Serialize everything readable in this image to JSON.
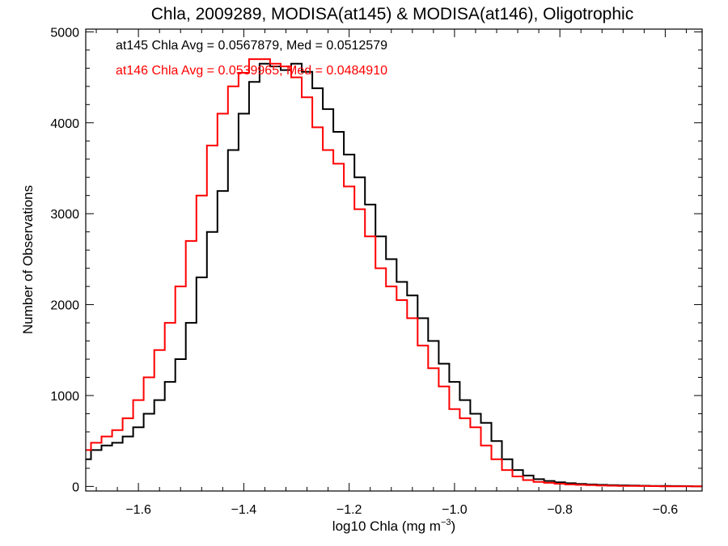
{
  "chart_data": {
    "type": "line",
    "step": true,
    "title": "Chla, 2009289, MODISA(at145) & MODISA(at146), Oligotrophic",
    "xlabel": "log10 Chla (mg m",
    "xlabel_sup": "−3",
    "xlabel_close": ")",
    "ylabel": "Number of Observations",
    "xlim": [
      -1.7,
      -0.53
    ],
    "ylim": [
      -50,
      5030
    ],
    "xticks": [
      -1.6,
      -1.4,
      -1.2,
      -1.0,
      -0.8,
      -0.6
    ],
    "xtick_labels": [
      "−1.6",
      "−1.4",
      "−1.2",
      "−1.0",
      "−0.8",
      "−0.6"
    ],
    "yticks": [
      0,
      1000,
      2000,
      3000,
      4000,
      5000
    ],
    "ytick_labels": [
      "0",
      "1000",
      "2000",
      "3000",
      "4000",
      "5000"
    ],
    "grid": false,
    "annotations": [
      {
        "text": "at145 Chla Avg = 0.0567879, Med = 0.0512579",
        "color": "#000000"
      },
      {
        "text": "at146 Chla Avg = 0.0539965, Med = 0.0484910",
        "color": "#ff0000"
      }
    ],
    "series": [
      {
        "color": "#000000",
        "x": [
          -1.7,
          -1.68,
          -1.66,
          -1.64,
          -1.62,
          -1.6,
          -1.58,
          -1.56,
          -1.54,
          -1.52,
          -1.5,
          -1.48,
          -1.46,
          -1.44,
          -1.42,
          -1.4,
          -1.38,
          -1.36,
          -1.34,
          -1.32,
          -1.3,
          -1.28,
          -1.26,
          -1.24,
          -1.22,
          -1.2,
          -1.18,
          -1.16,
          -1.14,
          -1.12,
          -1.1,
          -1.08,
          -1.06,
          -1.04,
          -1.02,
          -1.0,
          -0.98,
          -0.96,
          -0.94,
          -0.92,
          -0.9,
          -0.88,
          -0.86,
          -0.84,
          -0.82,
          -0.8,
          -0.78,
          -0.76,
          -0.74,
          -0.72,
          -0.7,
          -0.68,
          -0.66,
          -0.64,
          -0.62,
          -0.6,
          -0.58,
          -0.56,
          -0.54
        ],
        "y": [
          300,
          400,
          450,
          480,
          550,
          650,
          800,
          950,
          1150,
          1400,
          1800,
          2300,
          2800,
          3250,
          3700,
          4100,
          4450,
          4650,
          4620,
          4580,
          4650,
          4560,
          4380,
          4150,
          3900,
          3650,
          3400,
          3100,
          2750,
          2500,
          2250,
          2100,
          1850,
          1600,
          1350,
          1150,
          950,
          800,
          700,
          500,
          300,
          180,
          120,
          80,
          60,
          45,
          35,
          28,
          22,
          18,
          14,
          12,
          10,
          8,
          6,
          5,
          4,
          3,
          2
        ]
      },
      {
        "color": "#ff0000",
        "x": [
          -1.7,
          -1.68,
          -1.66,
          -1.64,
          -1.62,
          -1.6,
          -1.58,
          -1.56,
          -1.54,
          -1.52,
          -1.5,
          -1.48,
          -1.46,
          -1.44,
          -1.42,
          -1.4,
          -1.38,
          -1.36,
          -1.34,
          -1.32,
          -1.3,
          -1.28,
          -1.26,
          -1.24,
          -1.22,
          -1.2,
          -1.18,
          -1.16,
          -1.14,
          -1.12,
          -1.1,
          -1.08,
          -1.06,
          -1.04,
          -1.02,
          -1.0,
          -0.98,
          -0.96,
          -0.94,
          -0.92,
          -0.9,
          -0.88,
          -0.86,
          -0.84,
          -0.82,
          -0.8,
          -0.78,
          -0.76,
          -0.74,
          -0.72,
          -0.7,
          -0.68,
          -0.66,
          -0.64,
          -0.62,
          -0.6,
          -0.58,
          -0.56,
          -0.54
        ],
        "y": [
          400,
          480,
          550,
          620,
          750,
          950,
          1200,
          1500,
          1800,
          2200,
          2700,
          3200,
          3750,
          4100,
          4400,
          4550,
          4700,
          4700,
          4650,
          4620,
          4500,
          4280,
          3950,
          3700,
          3550,
          3300,
          3050,
          2750,
          2400,
          2200,
          2050,
          1850,
          1550,
          1300,
          1100,
          850,
          750,
          650,
          450,
          300,
          180,
          110,
          70,
          50,
          40,
          30,
          22,
          18,
          14,
          10,
          8,
          6,
          5,
          4,
          3,
          2,
          2,
          1,
          1
        ]
      }
    ]
  }
}
